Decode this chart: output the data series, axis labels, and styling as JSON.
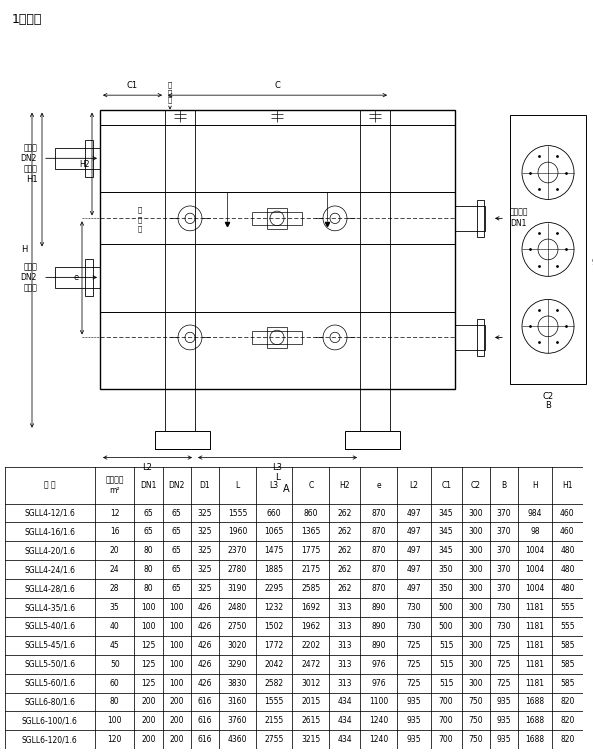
{
  "title": "1、卧式",
  "table_headers": [
    "型 号",
    "冷却面积\nm²",
    "DN1",
    "DN2",
    "D1",
    "L",
    "L3",
    "C",
    "H2",
    "e",
    "L2",
    "C1",
    "C2",
    "B",
    "H",
    "H1"
  ],
  "table_data": [
    [
      "SGLL4-12/1.6",
      "12",
      "65",
      "65",
      "325",
      "1555",
      "660",
      "860",
      "262",
      "870",
      "497",
      "345",
      "300",
      "370",
      "984",
      "460"
    ],
    [
      "SGLL4-16/1.6",
      "16",
      "65",
      "65",
      "325",
      "1960",
      "1065",
      "1365",
      "262",
      "870",
      "497",
      "345",
      "300",
      "370",
      "98",
      "460"
    ],
    [
      "SGLL4-20/1.6",
      "20",
      "80",
      "65",
      "325",
      "2370",
      "1475",
      "1775",
      "262",
      "870",
      "497",
      "345",
      "300",
      "370",
      "1004",
      "480"
    ],
    [
      "SGLL4-24/1.6",
      "24",
      "80",
      "65",
      "325",
      "2780",
      "1885",
      "2175",
      "262",
      "870",
      "497",
      "350",
      "300",
      "370",
      "1004",
      "480"
    ],
    [
      "SGLL4-28/1.6",
      "28",
      "80",
      "65",
      "325",
      "3190",
      "2295",
      "2585",
      "262",
      "870",
      "497",
      "350",
      "300",
      "370",
      "1004",
      "480"
    ],
    [
      "SGLL4-35/1.6",
      "35",
      "100",
      "100",
      "426",
      "2480",
      "1232",
      "1692",
      "313",
      "890",
      "730",
      "500",
      "300",
      "730",
      "1181",
      "555"
    ],
    [
      "SGLL5-40/1.6",
      "40",
      "100",
      "100",
      "426",
      "2750",
      "1502",
      "1962",
      "313",
      "890",
      "730",
      "500",
      "300",
      "730",
      "1181",
      "555"
    ],
    [
      "SGLL5-45/1.6",
      "45",
      "125",
      "100",
      "426",
      "3020",
      "1772",
      "2202",
      "313",
      "890",
      "725",
      "515",
      "300",
      "725",
      "1181",
      "585"
    ],
    [
      "SGLL5-50/1.6",
      "50",
      "125",
      "100",
      "426",
      "3290",
      "2042",
      "2472",
      "313",
      "976",
      "725",
      "515",
      "300",
      "725",
      "1181",
      "585"
    ],
    [
      "SGLL5-60/1.6",
      "60",
      "125",
      "100",
      "426",
      "3830",
      "2582",
      "3012",
      "313",
      "976",
      "725",
      "515",
      "300",
      "725",
      "1181",
      "585"
    ],
    [
      "SGLL6-80/1.6",
      "80",
      "200",
      "200",
      "616",
      "3160",
      "1555",
      "2015",
      "434",
      "1100",
      "935",
      "700",
      "750",
      "935",
      "1688",
      "820"
    ],
    [
      "SGLL6-100/1.6",
      "100",
      "200",
      "200",
      "616",
      "3760",
      "2155",
      "2615",
      "434",
      "1240",
      "935",
      "700",
      "750",
      "935",
      "1688",
      "820"
    ],
    [
      "SGLL6-120/1.6",
      "120",
      "200",
      "200",
      "616",
      "4360",
      "2755",
      "3215",
      "434",
      "1240",
      "935",
      "700",
      "750",
      "935",
      "1688",
      "820"
    ]
  ],
  "bg_color": "#ffffff",
  "lc": "#000000"
}
